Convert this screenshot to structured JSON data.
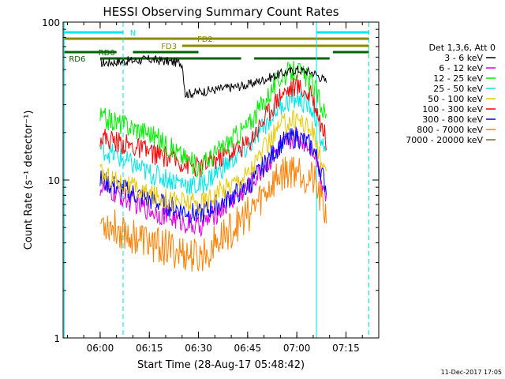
{
  "chart_data": {
    "type": "line",
    "title": "HESSI Observing Summary Count Rates",
    "xlabel": "Start Time (28-Aug-17 05:48:42)",
    "ylabel": "Count Rate (s⁻¹ detector⁻¹)",
    "y_scale": "log",
    "ylim": [
      1,
      100
    ],
    "y_ticks": [
      "1",
      "10",
      "100"
    ],
    "xlim": [
      "05:48:42",
      "07:25:00"
    ],
    "x_ticks": [
      "06:00",
      "06:15",
      "06:30",
      "06:45",
      "07:00",
      "07:15"
    ],
    "legend_title": "Det 1,3,6, Att 0",
    "legend_position": "right",
    "footer": "11-Dec-2017 17:05",
    "markers": [
      {
        "label": "N",
        "color": "#00e5e5"
      },
      {
        "label": "FD2",
        "color": "#8b8b00"
      },
      {
        "label": "FD3",
        "color": "#8b8b00"
      },
      {
        "label": "RD0",
        "color": "#006400"
      },
      {
        "label": "RD6",
        "color": "#006400"
      }
    ],
    "series": [
      {
        "name": "3 - 6 keV",
        "color": "#000000",
        "x": [
          "06:00",
          "06:15",
          "06:25",
          "06:26",
          "06:45",
          "06:55",
          "07:00",
          "07:05",
          "07:09"
        ],
        "y": [
          55,
          58,
          55,
          35,
          40,
          47,
          50,
          48,
          42
        ]
      },
      {
        "name": "6 - 12 keV",
        "color": "#e000e0",
        "x": [
          "06:00",
          "06:15",
          "06:30",
          "06:45",
          "06:55",
          "07:00",
          "07:05",
          "07:09"
        ],
        "y": [
          9,
          6.5,
          5,
          9,
          16,
          19,
          16,
          8
        ]
      },
      {
        "name": "12 - 25 keV",
        "color": "#00ee00",
        "x": [
          "06:00",
          "06:15",
          "06:30",
          "06:45",
          "06:55",
          "07:00",
          "07:05",
          "07:09"
        ],
        "y": [
          25,
          20,
          12,
          22,
          45,
          50,
          40,
          25
        ]
      },
      {
        "name": "25 - 50 keV",
        "color": "#00e5e5",
        "x": [
          "06:00",
          "06:15",
          "06:30",
          "06:45",
          "06:55",
          "07:00",
          "07:05",
          "07:09"
        ],
        "y": [
          16,
          11,
          9,
          16,
          30,
          33,
          28,
          14
        ]
      },
      {
        "name": "50 - 100 keV",
        "color": "#e8c800",
        "x": [
          "06:00",
          "06:15",
          "06:30",
          "06:45",
          "06:55",
          "07:00",
          "07:05",
          "07:09"
        ],
        "y": [
          11,
          8,
          7,
          11,
          22,
          25,
          20,
          10
        ]
      },
      {
        "name": "100 - 300 keV",
        "color": "#ff0000",
        "x": [
          "06:00",
          "06:15",
          "06:30",
          "06:45",
          "06:55",
          "07:00",
          "07:05",
          "07:09"
        ],
        "y": [
          19,
          15,
          12,
          17,
          35,
          40,
          33,
          18
        ]
      },
      {
        "name": "300 - 800 keV",
        "color": "#0000ff",
        "x": [
          "06:00",
          "06:15",
          "06:30",
          "06:45",
          "06:55",
          "07:00",
          "07:05",
          "07:09"
        ],
        "y": [
          10,
          7.5,
          6,
          9,
          17,
          19,
          16,
          9
        ]
      },
      {
        "name": "800 - 7000 keV",
        "color": "#ff8000",
        "x": [
          "06:00",
          "06:15",
          "06:30",
          "06:45",
          "06:55",
          "07:00",
          "07:05",
          "07:09"
        ],
        "y": [
          5.5,
          4,
          3.2,
          6,
          11,
          12,
          10,
          6
        ]
      },
      {
        "name": "7000 - 20000 keV",
        "color": "#8b6914",
        "x": [],
        "y": []
      }
    ]
  }
}
